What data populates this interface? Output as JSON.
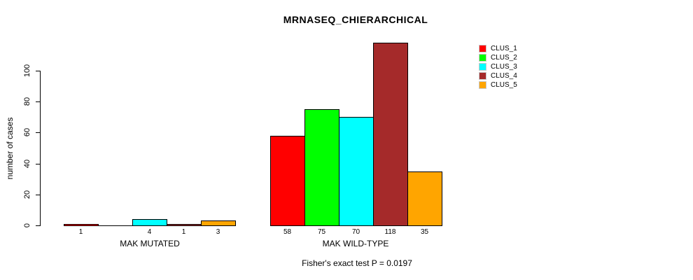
{
  "chart_data": {
    "type": "bar",
    "title": "MRNASEQ_CHIERARCHICAL",
    "ylabel": "number of cases",
    "xlabel": "",
    "ylim": [
      0,
      100
    ],
    "yticks": [
      "0",
      "20",
      "40",
      "60",
      "80",
      "100"
    ],
    "grid": false,
    "legend_position": "top-right",
    "categories": [
      "MAK MUTATED",
      "MAK WILD-TYPE"
    ],
    "series": [
      {
        "name": "CLUS_1",
        "color": "#FF0000",
        "values": [
          1,
          58
        ]
      },
      {
        "name": "CLUS_2",
        "color": "#00FF00",
        "values": [
          0,
          75
        ]
      },
      {
        "name": "CLUS_3",
        "color": "#00FFFF",
        "values": [
          4,
          70
        ]
      },
      {
        "name": "CLUS_4",
        "color": "#A52A2A",
        "values": [
          1,
          118
        ]
      },
      {
        "name": "CLUS_5",
        "color": "#FFA500",
        "values": [
          3,
          35
        ]
      }
    ],
    "bar_value_labels": [
      [
        "1",
        "",
        "4",
        "1",
        "3"
      ],
      [
        "58",
        "75",
        "70",
        "118",
        "35"
      ]
    ],
    "caption": "Fisher's exact test P = 0.0197",
    "colors": {
      "axis": "#000000",
      "background": "#FFFFFF",
      "bar_border": "#000000"
    }
  }
}
